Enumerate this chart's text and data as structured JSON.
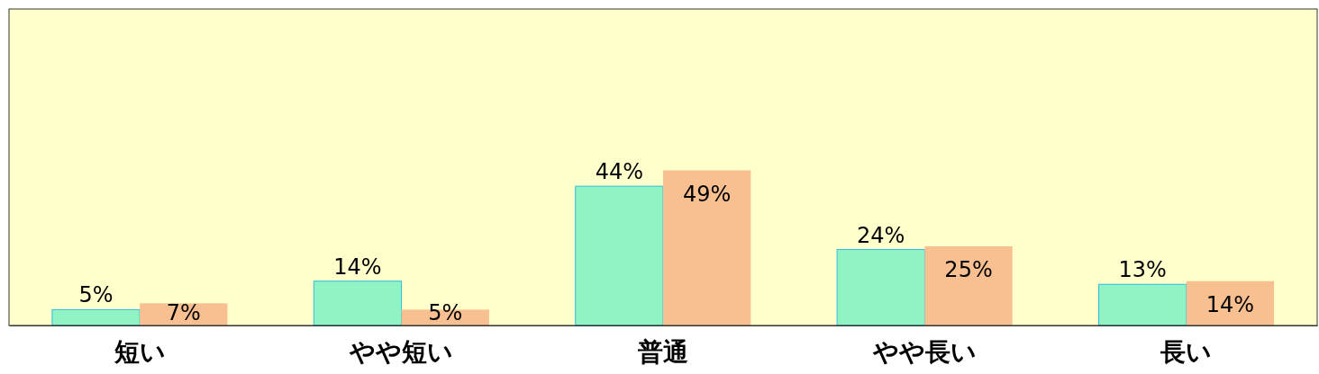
{
  "chart_data": {
    "type": "bar",
    "categories": [
      "短い",
      "やや短い",
      "普通",
      "やや長い",
      "長い"
    ],
    "series": [
      {
        "color": "#8ff3c4",
        "values": [
          5,
          14,
          44,
          24,
          13
        ],
        "value_labels": [
          "5%",
          "14%",
          "44%",
          "24%",
          "13%"
        ]
      },
      {
        "color": "#f8bf90",
        "values": [
          7,
          5,
          49,
          25,
          14
        ],
        "value_labels": [
          "7%",
          "5%",
          "49%",
          "25%",
          "14%"
        ]
      }
    ],
    "ylim": [
      0,
      100
    ],
    "tick_labels": "x"
  }
}
